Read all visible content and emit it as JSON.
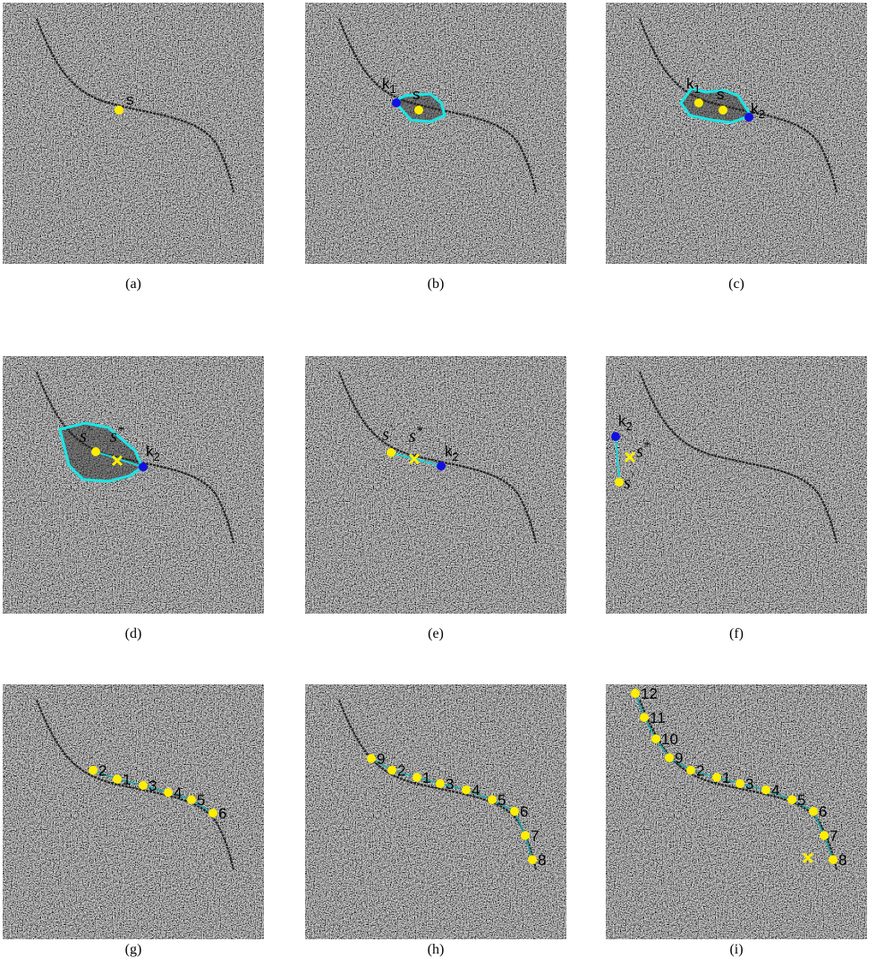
{
  "panels": [
    {
      "caption": "(a)",
      "labels": [
        {
          "text": "s"
        }
      ]
    },
    {
      "caption": "(b)",
      "labels": [
        {
          "text": "k",
          "sub": "1"
        },
        {
          "text": "s"
        }
      ]
    },
    {
      "caption": "(c)",
      "labels": [
        {
          "text": "k",
          "sub": "1"
        },
        {
          "text": "s"
        },
        {
          "text": "k",
          "sub": "2"
        }
      ]
    },
    {
      "caption": "(d)",
      "labels": [
        {
          "text": "s",
          "sup": "'"
        },
        {
          "text": "s",
          "sup": "*"
        },
        {
          "text": "k",
          "sub": "2"
        }
      ]
    },
    {
      "caption": "(e)",
      "labels": [
        {
          "text": "s",
          "sup": "'"
        },
        {
          "text": "s",
          "sup": "*"
        },
        {
          "text": "k",
          "sub": "2"
        }
      ]
    },
    {
      "caption": "(f)",
      "labels": [
        {
          "text": "k",
          "sub": "2"
        },
        {
          "text": "s",
          "sup": "*"
        },
        {
          "text": "s",
          "sup": "'"
        }
      ]
    },
    {
      "caption": "(g)",
      "labels": [
        {
          "text": "2"
        },
        {
          "text": "1"
        },
        {
          "text": "3"
        },
        {
          "text": "4"
        },
        {
          "text": "5"
        },
        {
          "text": "6"
        }
      ]
    },
    {
      "caption": "(h)",
      "labels": [
        {
          "text": "9"
        },
        {
          "text": "2"
        },
        {
          "text": "1"
        },
        {
          "text": "3"
        },
        {
          "text": "4"
        },
        {
          "text": "5"
        },
        {
          "text": "6"
        },
        {
          "text": "7"
        },
        {
          "text": "8"
        }
      ]
    },
    {
      "caption": "(i)",
      "labels": [
        {
          "text": "12"
        },
        {
          "text": "11"
        },
        {
          "text": "10"
        },
        {
          "text": "9"
        },
        {
          "text": "2"
        },
        {
          "text": "1"
        },
        {
          "text": "3"
        },
        {
          "text": "4"
        },
        {
          "text": "5"
        },
        {
          "text": "6"
        },
        {
          "text": "7"
        },
        {
          "text": "8"
        }
      ]
    }
  ]
}
